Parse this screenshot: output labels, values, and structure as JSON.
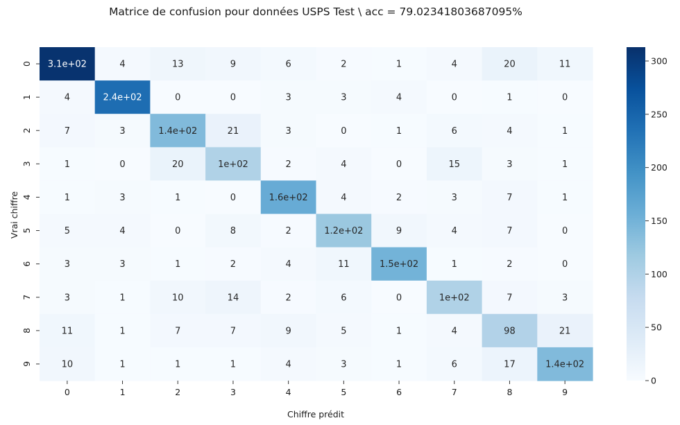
{
  "chart_data": {
    "type": "heatmap",
    "title": "Matrice de confusion pour données USPS Test \\ acc = 79.02341803687095%",
    "xlabel": "Chiffre prédit",
    "ylabel": "Vrai chiffre",
    "x_categories": [
      "0",
      "1",
      "2",
      "3",
      "4",
      "5",
      "6",
      "7",
      "8",
      "9"
    ],
    "y_categories": [
      "0",
      "1",
      "2",
      "3",
      "4",
      "5",
      "6",
      "7",
      "8",
      "9"
    ],
    "values": [
      [
        310,
        4,
        13,
        9,
        6,
        2,
        1,
        4,
        20,
        11
      ],
      [
        4,
        240,
        0,
        0,
        3,
        3,
        4,
        0,
        1,
        0
      ],
      [
        7,
        3,
        140,
        21,
        3,
        0,
        1,
        6,
        4,
        1
      ],
      [
        1,
        0,
        20,
        100,
        2,
        4,
        0,
        15,
        3,
        1
      ],
      [
        1,
        3,
        1,
        0,
        160,
        4,
        2,
        3,
        7,
        1
      ],
      [
        5,
        4,
        0,
        8,
        2,
        120,
        9,
        4,
        7,
        0
      ],
      [
        3,
        3,
        1,
        2,
        4,
        11,
        150,
        1,
        2,
        0
      ],
      [
        3,
        1,
        10,
        14,
        2,
        6,
        0,
        100,
        7,
        3
      ],
      [
        11,
        1,
        7,
        7,
        9,
        5,
        1,
        4,
        98,
        21
      ],
      [
        10,
        1,
        1,
        1,
        4,
        3,
        1,
        6,
        17,
        140
      ]
    ],
    "annotations": [
      [
        "3.1e+02",
        "4",
        "13",
        "9",
        "6",
        "2",
        "1",
        "4",
        "20",
        "11"
      ],
      [
        "4",
        "2.4e+02",
        "0",
        "0",
        "3",
        "3",
        "4",
        "0",
        "1",
        "0"
      ],
      [
        "7",
        "3",
        "1.4e+02",
        "21",
        "3",
        "0",
        "1",
        "6",
        "4",
        "1"
      ],
      [
        "1",
        "0",
        "20",
        "1e+02",
        "2",
        "4",
        "0",
        "15",
        "3",
        "1"
      ],
      [
        "1",
        "3",
        "1",
        "0",
        "1.6e+02",
        "4",
        "2",
        "3",
        "7",
        "1"
      ],
      [
        "5",
        "4",
        "0",
        "8",
        "2",
        "1.2e+02",
        "9",
        "4",
        "7",
        "0"
      ],
      [
        "3",
        "3",
        "1",
        "2",
        "4",
        "11",
        "1.5e+02",
        "1",
        "2",
        "0"
      ],
      [
        "3",
        "1",
        "10",
        "14",
        "2",
        "6",
        "0",
        "1e+02",
        "7",
        "3"
      ],
      [
        "11",
        "1",
        "7",
        "7",
        "9",
        "5",
        "1",
        "4",
        "98",
        "21"
      ],
      [
        "10",
        "1",
        "1",
        "1",
        "4",
        "3",
        "1",
        "6",
        "17",
        "1.4e+02"
      ]
    ],
    "colormap": "Blues",
    "vmin": 0,
    "vmax": 313,
    "colorbar_ticks": [
      0,
      50,
      100,
      150,
      200,
      250,
      300
    ],
    "colorbar_tick_labels": [
      "0",
      "50",
      "100",
      "150",
      "200",
      "250",
      "300"
    ],
    "text_color_dark": "#262626",
    "text_color_light": "#ffffff"
  }
}
